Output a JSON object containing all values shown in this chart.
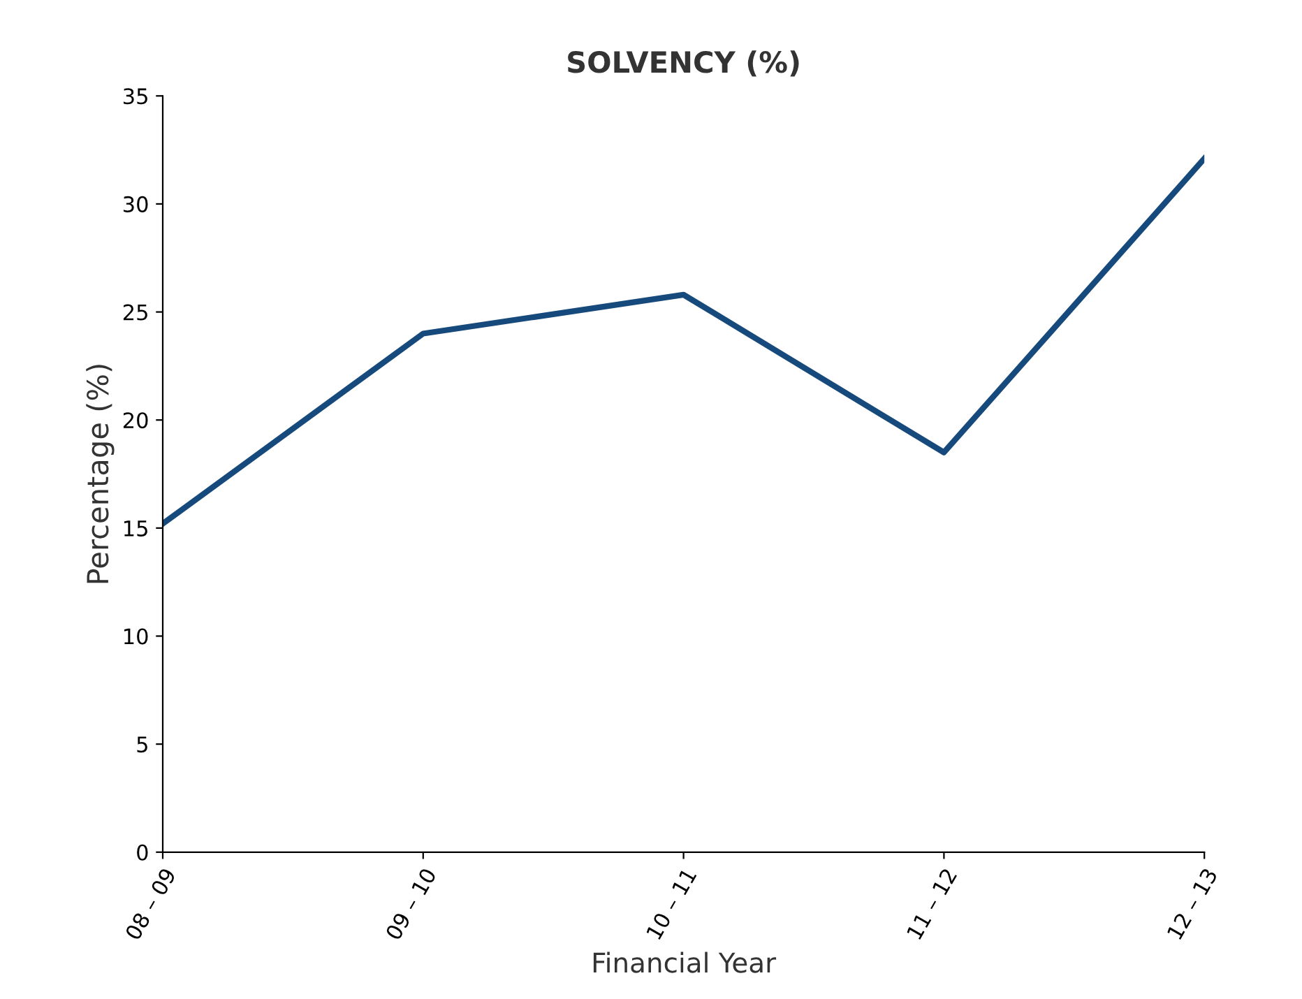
{
  "chart_data": {
    "type": "line",
    "title": "SOLVENCY (%)",
    "xlabel": "Financial Year",
    "ylabel": "Percentage (%)",
    "categories": [
      "08 – 09",
      "09 – 10",
      "10 – 11",
      "11 – 12",
      "12 – 13"
    ],
    "series": [
      {
        "color": "#174a7c",
        "values": [
          15.2,
          24.0,
          25.8,
          18.5,
          32.1
        ]
      }
    ],
    "ylim": [
      0,
      35
    ],
    "yticks": [
      0,
      5,
      10,
      15,
      20,
      25,
      30,
      35
    ],
    "grid": false,
    "legend": false,
    "marker": "none",
    "line_style": "solid"
  }
}
